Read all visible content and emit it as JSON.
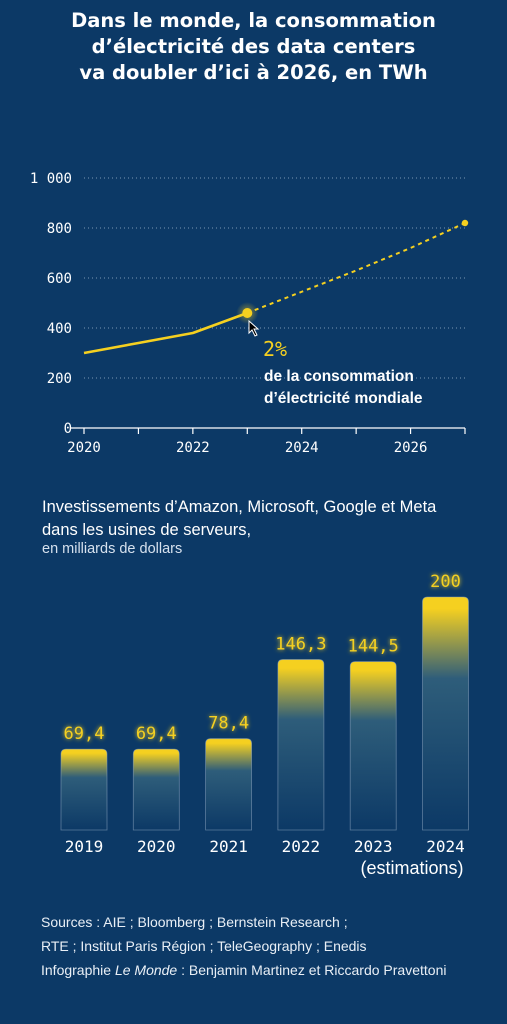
{
  "title": {
    "line1": "Dans le monde, la consommation",
    "line2": "d’électricité des data centers",
    "line3": "va doubler d’ici à 2026, en TWh"
  },
  "chart_data": [
    {
      "type": "line",
      "x": [
        2020,
        2021,
        2022,
        2023,
        2024,
        2025,
        2026,
        2027
      ],
      "series": [
        {
          "values": [
            300,
            340,
            380,
            460,
            null,
            null,
            null,
            null
          ],
          "style": "solid"
        },
        {
          "values": [
            null,
            null,
            null,
            460,
            545,
            630,
            720,
            820
          ],
          "style": "dashed"
        }
      ],
      "xticks": [
        "2020",
        "2022",
        "2024",
        "2026"
      ],
      "yticks": [
        "0",
        "200",
        "400",
        "600",
        "800",
        "1 000"
      ],
      "ylim": [
        0,
        1000
      ],
      "grid": "dotted",
      "annotation": {
        "value": "2%",
        "line1": "de la consommation",
        "line2": "d’électricité mondiale"
      },
      "colors": {
        "line": "#f5d020",
        "axis": "#ffffff"
      }
    },
    {
      "type": "bar",
      "title": "Investissements d’Amazon, Microsoft, Google et Meta dans les usines de serveurs,",
      "subtitle": "en milliards de dollars",
      "categories": [
        "2019",
        "2020",
        "2021",
        "2022",
        "2023",
        "2024"
      ],
      "values": [
        69.4,
        69.4,
        78.4,
        146.3,
        144.5,
        200
      ],
      "value_labels": [
        "69,4",
        "69,4",
        "78,4",
        "146,3",
        "144,5",
        "200"
      ],
      "category_note": "(estimations)",
      "colors": {
        "bar_top": "#f5d020",
        "bar_body": "#0c3966",
        "label": "#f5d020"
      }
    }
  ],
  "investments": {
    "title_line1": "Investissements d’Amazon, Microsoft, Google et Meta",
    "title_line2": "dans les usines de serveurs,",
    "subtitle": "en milliards de dollars"
  },
  "sources": {
    "line1": "Sources : AIE ; Bloomberg ; Bernstein Research ;",
    "line2": "RTE ; Institut Paris Région ; TeleGeography ; Enedis",
    "line3_prefix": "Infographie ",
    "line3_italic": "Le Monde",
    "line3_suffix": " : Benjamin Martinez et Riccardo Pravettoni"
  }
}
